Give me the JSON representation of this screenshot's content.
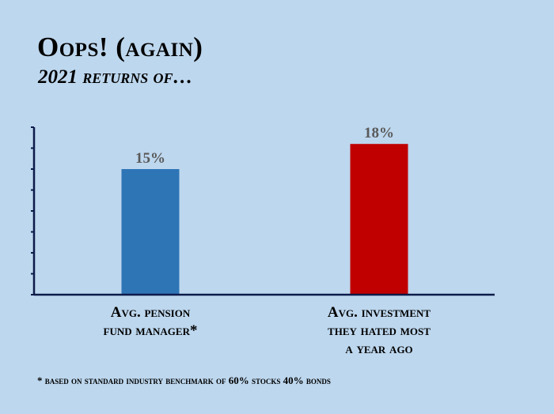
{
  "title": "Oops! (again)",
  "subtitle": "2021 returns of…",
  "footnote": "* based on standard industry benchmark of 60% stocks 40% bonds",
  "colors": {
    "background": "#bdd7ee",
    "pension_bar": "#2e75b6",
    "hated_bar": "#c00000",
    "axis": "#0d1b4a",
    "data_label": "#595959"
  },
  "chart_data": {
    "type": "bar",
    "categories": [
      [
        "Avg. pension",
        "fund manager*"
      ],
      [
        "Avg. investment",
        "they hated most",
        "a year ago"
      ]
    ],
    "values": [
      15,
      18
    ],
    "data_labels": [
      "15%",
      "18%"
    ],
    "ylim": [
      0,
      20
    ],
    "grid": false,
    "legend": "none"
  }
}
